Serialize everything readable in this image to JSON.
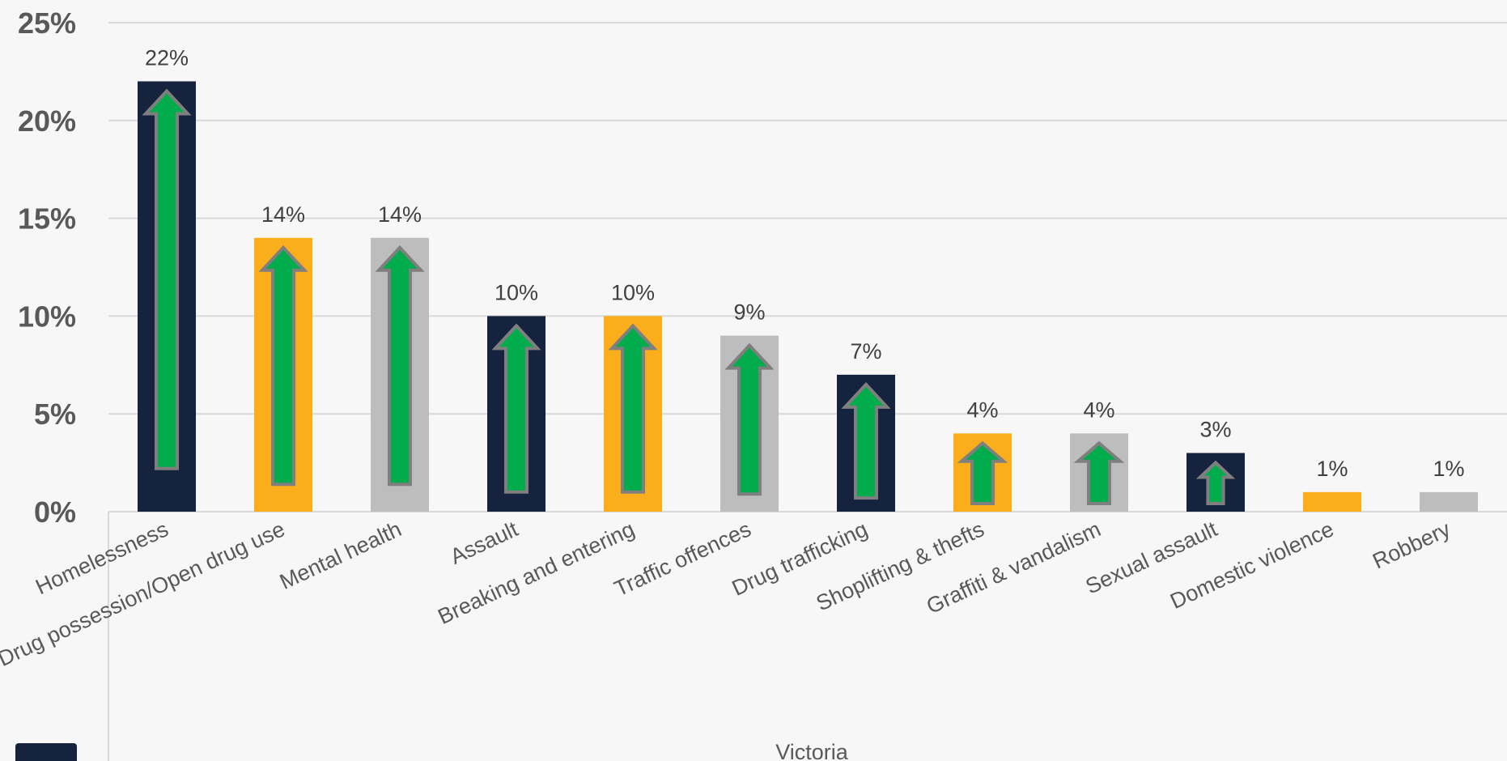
{
  "chart_data": {
    "type": "bar",
    "categories": [
      "Homelessness",
      "Drug possession/Open drug use",
      "Mental health",
      "Assault",
      "Breaking and entering",
      "Traffic offences",
      "Drug trafficking",
      "Shoplifting & thefts",
      "Graffiti & vandalism",
      "Sexual assault",
      "Domestic violence",
      "Robbery"
    ],
    "values": [
      22,
      14,
      14,
      10,
      10,
      9,
      7,
      4,
      4,
      3,
      1,
      1
    ],
    "data_labels": [
      "22%",
      "14%",
      "14%",
      "10%",
      "10%",
      "9%",
      "7%",
      "4%",
      "4%",
      "3%",
      "1%",
      "1%"
    ],
    "trend_arrow": [
      "up",
      "up",
      "up",
      "up",
      "up",
      "up",
      "up",
      "up",
      "up",
      "up",
      "none",
      "none"
    ],
    "bar_colors": [
      "#15233f",
      "#fbae1c",
      "#bdbdbd",
      "#15233f",
      "#fbae1c",
      "#bdbdbd",
      "#15233f",
      "#fbae1c",
      "#bdbdbd",
      "#15233f",
      "#fbae1c",
      "#bdbdbd"
    ],
    "arrow_color": "#00ac4c",
    "arrow_outline_color": "#7f7f7f",
    "y_ticks": [
      "0%",
      "5%",
      "10%",
      "15%",
      "20%",
      "25%"
    ],
    "ylim": [
      0,
      25
    ],
    "xlabel": "Victoria",
    "ylabel": "",
    "title": "",
    "grid": true,
    "legend_swatch_color": "#15233f"
  }
}
